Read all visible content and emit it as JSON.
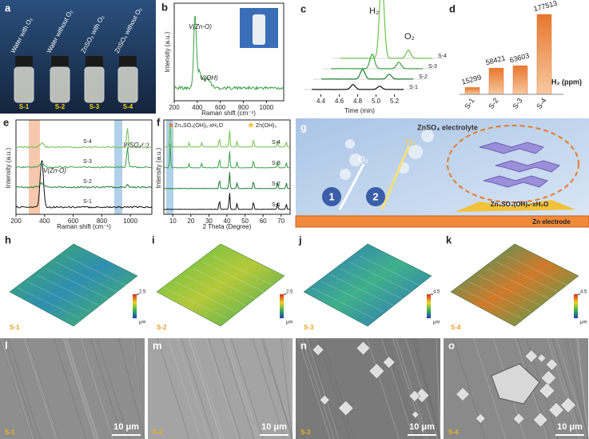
{
  "panels": {
    "a": {
      "label": "a",
      "samples": [
        "Water with O₂",
        "Water without O₂",
        "ZnSO₄ with O₂",
        "ZnSO₄ without O₂"
      ],
      "sample_ids": [
        "S-1",
        "S-2",
        "S-3",
        "S-4"
      ]
    },
    "b": {
      "label": "b",
      "xlabel": "Raman shift (cm⁻¹)",
      "ylabel": "Intensity (a.u.)",
      "xlim": [
        200,
        1150
      ],
      "xticks": [
        200,
        400,
        600,
        800,
        1000
      ],
      "annotations": [
        "V(Zn-O)",
        "V(OH)"
      ]
    },
    "c": {
      "label": "c",
      "xlabel": "Time (min)",
      "xlim": [
        4.3,
        5.3
      ],
      "xticks": [
        4.4,
        4.6,
        4.8,
        {
          "value": 5,
          "label": "5.0"
        },
        5.2
      ],
      "gases": [
        "H₂",
        "O₂"
      ],
      "series_labels": [
        "S-1",
        "S-2",
        "S-3",
        "S-4"
      ]
    },
    "e": {
      "label": "e",
      "xlabel": "Raman shift (cm⁻¹)",
      "ylabel": "Intensity (a.u.)",
      "xlim": [
        200,
        1150
      ],
      "xticks": [
        200,
        400,
        600,
        800,
        1000
      ],
      "annotations": [
        "V(Zn-O)",
        "V(SO₄²⁻)"
      ],
      "series_labels": [
        "S-1",
        "S-2",
        "S-3",
        "S-4"
      ]
    },
    "f": {
      "label": "f",
      "xlabel": "2 Theta (Degree)",
      "ylabel": "Intensity (a.u.)",
      "xlim": [
        5,
        75
      ],
      "xticks": [
        10,
        20,
        30,
        40,
        50,
        60,
        70
      ],
      "legend": [
        "Zn₄SO₄(OH)₆·xH₂O",
        "Zn(OH)₂"
      ],
      "series_labels": [
        "S-1",
        "S-2",
        "S-3",
        "S-4"
      ]
    },
    "g": {
      "label": "g",
      "electrolyte": "ZnSO₄ electrolyte",
      "gases": [
        "O₂",
        "H₂"
      ],
      "steps": [
        "1",
        "2"
      ],
      "product": "Zn₄SO₄(OH)₆·xH₂O",
      "electrode": "Zn electrode"
    },
    "surfaces": [
      {
        "label": "h",
        "sample": "S-1",
        "colorbar_max": 2.5,
        "unit": "μm"
      },
      {
        "label": "i",
        "sample": "S-2",
        "colorbar_max": 2.5,
        "unit": "μm"
      },
      {
        "label": "j",
        "sample": "S-3",
        "colorbar_max": 4.5,
        "unit": "μm"
      },
      {
        "label": "k",
        "sample": "S-4",
        "colorbar_max": 4.5,
        "unit": "μm"
      }
    ],
    "sem": [
      {
        "label": "l",
        "sample": "S-1",
        "scale_bar": "10 μm"
      },
      {
        "label": "m",
        "sample": "S-2",
        "scale_bar": "10 μm"
      },
      {
        "label": "n",
        "sample": "S-3",
        "scale_bar": "10 μm"
      },
      {
        "label": "o",
        "sample": "S-4",
        "scale_bar": "10 μm"
      }
    ]
  },
  "chart_data": {
    "type": "bar",
    "panel_label": "d",
    "categories": [
      "S-1",
      "S-2",
      "S-3",
      "S-4"
    ],
    "values": [
      15299,
      58421,
      63603,
      177513
    ],
    "unit_label": "H₂ (ppm)",
    "color": "#e8772e"
  }
}
